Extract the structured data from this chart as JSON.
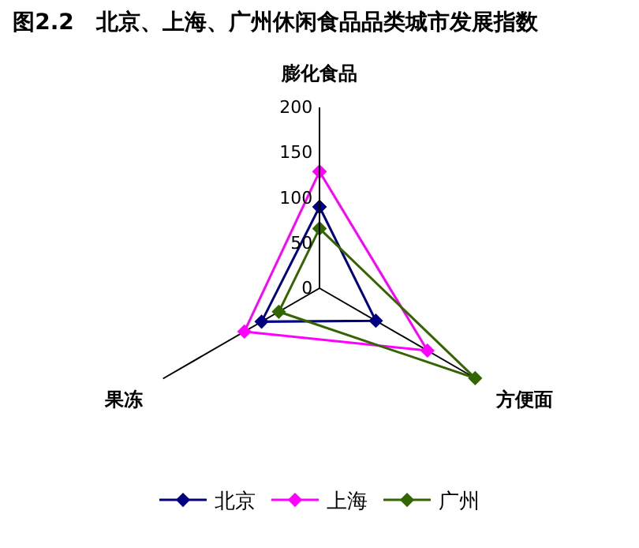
{
  "chart_data": {
    "type": "radar",
    "title": "图2.2　北京、上海、广州休闲食品品类城市发展指数",
    "categories": [
      "膨化食品",
      "方便面",
      "果冻"
    ],
    "ylim": [
      0,
      200
    ],
    "yticks": [
      0,
      50,
      100,
      150,
      200
    ],
    "grid": false,
    "legend": "bottom",
    "marker": "diamond",
    "series": [
      {
        "name": "北京",
        "color": "#000080",
        "values": [
          90,
          72,
          74
        ]
      },
      {
        "name": "上海",
        "color": "#ff00ff",
        "values": [
          129,
          138,
          96
        ]
      },
      {
        "name": "广州",
        "color": "#336600",
        "values": [
          66,
          199,
          52
        ]
      }
    ]
  }
}
